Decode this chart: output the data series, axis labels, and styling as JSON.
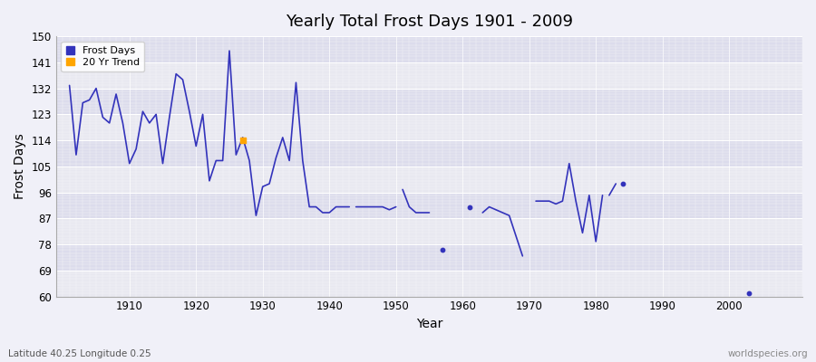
{
  "title": "Yearly Total Frost Days 1901 - 2009",
  "xlabel": "Year",
  "ylabel": "Frost Days",
  "subtitle": "Latitude 40.25 Longitude 0.25",
  "watermark": "worldspecies.org",
  "ylim": [
    60,
    150
  ],
  "yticks": [
    60,
    69,
    78,
    87,
    96,
    105,
    114,
    123,
    132,
    141,
    150
  ],
  "xticks": [
    1910,
    1920,
    1930,
    1940,
    1950,
    1960,
    1970,
    1980,
    1990,
    2000
  ],
  "xlim": [
    1899,
    2011
  ],
  "line_color": "#3333bb",
  "trend_color": "#FFA500",
  "bg_color": "#f0f0f8",
  "plot_bg": "#f0f0f8",
  "segments": [
    {
      "years": [
        1901,
        1902,
        1903,
        1904,
        1905,
        1906,
        1907,
        1908,
        1909,
        1910,
        1911,
        1912,
        1913,
        1914,
        1915,
        1916,
        1917,
        1918,
        1919,
        1920,
        1921,
        1922,
        1923,
        1924,
        1925,
        1926,
        1927,
        1928,
        1929,
        1930,
        1931,
        1932,
        1933,
        1934,
        1935,
        1936,
        1937,
        1938,
        1939,
        1940,
        1941,
        1942,
        1943
      ],
      "vals": [
        133,
        109,
        127,
        128,
        132,
        122,
        120,
        130,
        120,
        106,
        111,
        124,
        120,
        123,
        106,
        122,
        137,
        135,
        124,
        112,
        123,
        100,
        107,
        107,
        145,
        109,
        115,
        107,
        88,
        98,
        99,
        108,
        115,
        107,
        134,
        107,
        91,
        91,
        89,
        89,
        91,
        91,
        91
      ]
    },
    {
      "years": [
        1944,
        1945,
        1946,
        1947,
        1948,
        1949,
        1950
      ],
      "vals": [
        91,
        91,
        91,
        91,
        91,
        90,
        91
      ]
    },
    {
      "years": [
        1951,
        1952,
        1953,
        1954,
        1955
      ],
      "vals": [
        97,
        91,
        89,
        89,
        89
      ]
    },
    {
      "years": [
        1963,
        1964,
        1965,
        1966,
        1967,
        1968,
        1969
      ],
      "vals": [
        89,
        91,
        90,
        89,
        88,
        81,
        74
      ]
    },
    {
      "years": [
        1971,
        1972,
        1973,
        1974,
        1975,
        1976,
        1977,
        1978,
        1979,
        1980,
        1981
      ],
      "vals": [
        93,
        93,
        93,
        92,
        93,
        106,
        93,
        82,
        95,
        79,
        95
      ]
    },
    {
      "years": [
        1982,
        1983
      ],
      "vals": [
        95,
        99
      ]
    }
  ],
  "isolated": [
    {
      "year": 1957,
      "val": 76
    },
    {
      "year": 1961,
      "val": 91
    },
    {
      "year": 1984,
      "val": 99
    },
    {
      "year": 2003,
      "val": 61
    }
  ],
  "trend_point": {
    "year": 1927,
    "value": 114
  }
}
